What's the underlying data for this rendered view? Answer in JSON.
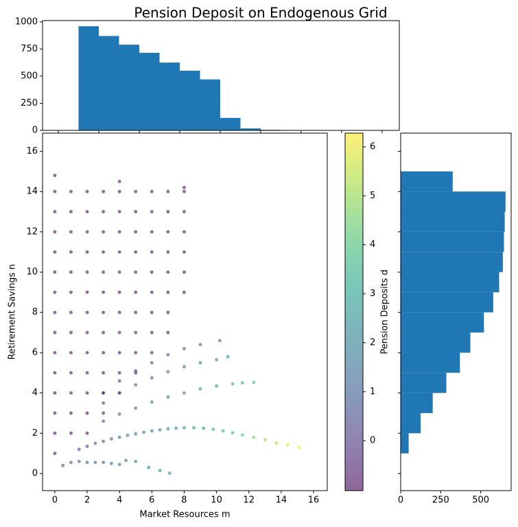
{
  "title": "Pension Deposit on Endogenous Grid",
  "chart_data": [
    {
      "type": "histogram",
      "orientation": "vertical",
      "color": "#1f77b4",
      "bins": [
        1,
        2,
        3,
        4,
        5,
        6,
        7,
        8,
        9,
        10,
        11,
        12,
        13,
        14
      ],
      "values": [
        960,
        870,
        790,
        715,
        625,
        550,
        470,
        115,
        18,
        5,
        3,
        2,
        1
      ],
      "xlim": [
        -0.78,
        16.85
      ],
      "xticks": [
        0,
        2,
        4,
        6,
        8,
        10,
        12,
        14,
        16
      ],
      "ylim": [
        0,
        1012
      ],
      "yticks": [
        0,
        250,
        500,
        750,
        1000
      ]
    },
    {
      "type": "scatter",
      "xlabel": "Market Resources m",
      "ylabel": "Retirement Savings n",
      "xlim": [
        -0.76,
        16.85
      ],
      "xticks": [
        0,
        2,
        4,
        6,
        8,
        10,
        12,
        14,
        16
      ],
      "ylim": [
        -0.85,
        16.9
      ],
      "yticks": [
        0,
        2,
        4,
        6,
        8,
        10,
        12,
        14,
        16
      ],
      "colormap": "viridis",
      "alpha": 0.6,
      "clim": [
        -1.02,
        6.28
      ],
      "cticks": [
        0,
        1,
        2,
        3,
        4,
        5,
        6
      ],
      "clabel": "Pension Deposits d",
      "series": [
        {
          "x": [
            0,
            0,
            1,
            2,
            0,
            1,
            2,
            3,
            0,
            1,
            2,
            3,
            4,
            0,
            1,
            2,
            3,
            4,
            5,
            0,
            1,
            2,
            3,
            4,
            5,
            6,
            0,
            1,
            2,
            3,
            4,
            5,
            6,
            7,
            0,
            1,
            2,
            3,
            4,
            5,
            6,
            7,
            0,
            1,
            2,
            3,
            4,
            5,
            6,
            7,
            8,
            0,
            1,
            2,
            3,
            4,
            5,
            6,
            7,
            8,
            0,
            1,
            2,
            3,
            4,
            5,
            6,
            7,
            8,
            0,
            1,
            2,
            3,
            4,
            5,
            6,
            7,
            8,
            0,
            1,
            2,
            3,
            4,
            5,
            6,
            7,
            8,
            0,
            1,
            2,
            3,
            4,
            5,
            6,
            7,
            8,
            0,
            4,
            8
          ],
          "y": [
            1,
            2,
            2,
            2,
            3,
            3,
            3,
            3,
            4,
            4,
            4,
            4,
            4,
            5,
            5,
            5,
            5,
            5,
            5,
            6,
            6,
            6,
            6,
            6,
            6,
            6,
            7,
            7,
            7,
            7,
            7,
            7,
            7,
            7,
            8,
            8,
            8,
            8,
            8,
            8,
            8,
            8,
            9,
            9,
            9,
            9,
            9,
            9,
            9,
            9,
            9,
            10,
            10,
            10,
            10,
            10,
            10,
            10,
            10,
            10,
            11,
            11,
            11,
            11,
            11,
            11,
            11,
            11,
            11,
            12,
            12,
            12,
            12,
            12,
            12,
            12,
            12,
            12,
            13,
            13,
            13,
            13,
            13,
            13,
            13,
            13,
            13,
            14,
            14,
            14,
            14,
            14,
            14,
            14,
            14,
            14,
            14.8,
            14.5,
            14.2
          ],
          "c": -0.8
        },
        {
          "x": [
            0.5,
            1,
            1.5,
            2,
            2.5,
            3,
            3.5,
            4,
            4.4,
            5,
            5.8,
            6.5,
            7.1
          ],
          "y": [
            0.4,
            0.55,
            0.6,
            0.55,
            0.55,
            0.55,
            0.5,
            0.45,
            0.65,
            0.6,
            0.3,
            0.15,
            0.02
          ],
          "c": [
            0.6,
            0.8,
            1.0,
            1.2,
            1.3,
            1.4,
            1.5,
            1.6,
            1.8,
            1.9,
            2.1,
            2.3,
            2.5
          ]
        },
        {
          "x": [
            1.5,
            2,
            2.5,
            3,
            3.5,
            4,
            4.5,
            5,
            5.5,
            6,
            6.5,
            7,
            7.5,
            8,
            8.6,
            9.2,
            9.8,
            10.4,
            11,
            11.6,
            12.3,
            13,
            13.7,
            14.4,
            15.1
          ],
          "y": [
            1.2,
            1.35,
            1.5,
            1.6,
            1.72,
            1.8,
            1.9,
            1.97,
            2.05,
            2.12,
            2.17,
            2.22,
            2.25,
            2.27,
            2.27,
            2.25,
            2.2,
            2.12,
            2.02,
            1.92,
            1.8,
            1.67,
            1.52,
            1.42,
            1.28
          ],
          "c": [
            0.3,
            0.5,
            0.7,
            0.9,
            1.0,
            1.2,
            1.4,
            1.5,
            1.7,
            1.9,
            2.0,
            2.2,
            2.4,
            2.6,
            2.8,
            3.0,
            3.3,
            3.6,
            3.9,
            4.2,
            4.6,
            5.0,
            5.4,
            5.8,
            6.2
          ]
        },
        {
          "x": [
            3,
            4,
            5,
            6,
            7,
            8,
            9,
            10,
            11,
            11.6,
            12.3
          ],
          "y": [
            2.6,
            2.95,
            3.25,
            3.55,
            3.8,
            4.0,
            4.2,
            4.35,
            4.45,
            4.5,
            4.52
          ],
          "c": [
            0.8,
            1.1,
            1.4,
            1.7,
            2.0,
            2.3,
            2.6,
            2.9,
            3.3,
            3.6,
            3.9
          ]
        },
        {
          "x": [
            3,
            4,
            5,
            6,
            7,
            8,
            9,
            10,
            10.7
          ],
          "y": [
            3.5,
            4.0,
            4.4,
            4.75,
            5.05,
            5.3,
            5.5,
            5.65,
            5.8
          ],
          "c": [
            0.2,
            0.5,
            0.8,
            1.0,
            1.3,
            1.6,
            1.9,
            2.3,
            2.6
          ]
        },
        {
          "x": [
            3,
            4,
            5,
            6,
            7,
            8,
            9,
            10.2
          ],
          "y": [
            4.0,
            4.6,
            5.1,
            5.5,
            5.9,
            6.2,
            6.4,
            6.6
          ],
          "c": [
            -0.3,
            0,
            0.2,
            0.4,
            0.7,
            0.9,
            1.2,
            1.5
          ]
        }
      ]
    },
    {
      "type": "histogram",
      "orientation": "horizontal",
      "color": "#1f77b4",
      "bins": [
        1,
        2,
        3,
        4,
        5,
        6,
        7,
        8,
        9,
        10,
        11,
        12,
        13,
        14,
        15
      ],
      "values": [
        50,
        125,
        200,
        285,
        370,
        435,
        520,
        578,
        615,
        638,
        645,
        650,
        655,
        325
      ],
      "xlim": [
        0,
        690
      ],
      "xticks": [
        0,
        250,
        500
      ],
      "ylim": [
        -0.85,
        16.9
      ],
      "yticks": [
        0,
        2,
        4,
        6,
        8,
        10,
        12,
        14,
        16
      ]
    }
  ]
}
